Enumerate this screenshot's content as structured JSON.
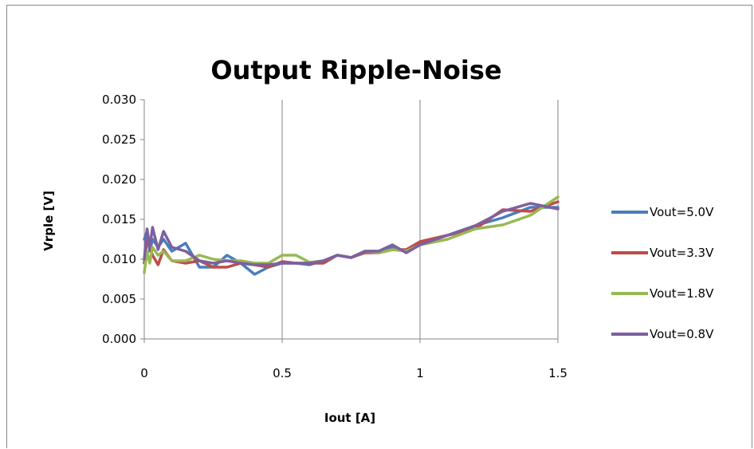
{
  "chart_data": {
    "type": "line",
    "title": "Output Ripple-Noise",
    "xlabel": "Iout [A]",
    "ylabel": "Vrple [V]",
    "xlim": [
      0,
      1.5
    ],
    "ylim": [
      0,
      0.03
    ],
    "xticks": [
      0,
      0.5,
      1,
      1.5
    ],
    "xtick_labels": [
      "0",
      "0.5",
      "1",
      "1.5"
    ],
    "yticks": [
      0,
      0.005,
      0.01,
      0.015,
      0.02,
      0.025,
      0.03
    ],
    "ytick_labels": [
      "0.000",
      "0.005",
      "0.010",
      "0.015",
      "0.020",
      "0.025",
      "0.030"
    ],
    "grid": "vertical",
    "legend_position": "right",
    "series": [
      {
        "name": "Vout=5.0V",
        "color": "#4a7ebb",
        "x": [
          0,
          0.01,
          0.02,
          0.03,
          0.05,
          0.07,
          0.1,
          0.15,
          0.2,
          0.25,
          0.3,
          0.35,
          0.4,
          0.45,
          0.5,
          0.55,
          0.6,
          0.65,
          0.7,
          0.75,
          0.8,
          0.85,
          0.9,
          0.95,
          1.0,
          1.1,
          1.2,
          1.3,
          1.4,
          1.5
        ],
        "y": [
          0.0125,
          0.0135,
          0.011,
          0.0125,
          0.0115,
          0.0125,
          0.011,
          0.012,
          0.009,
          0.009,
          0.0105,
          0.0095,
          0.0081,
          0.009,
          0.0095,
          0.0095,
          0.0093,
          0.0098,
          0.0105,
          0.0102,
          0.011,
          0.011,
          0.0115,
          0.011,
          0.012,
          0.013,
          0.0142,
          0.0152,
          0.0165,
          0.0165
        ]
      },
      {
        "name": "Vout=3.3V",
        "color": "#be4b48",
        "x": [
          0,
          0.01,
          0.02,
          0.03,
          0.05,
          0.07,
          0.1,
          0.15,
          0.2,
          0.25,
          0.3,
          0.35,
          0.4,
          0.45,
          0.5,
          0.55,
          0.6,
          0.65,
          0.7,
          0.75,
          0.8,
          0.85,
          0.9,
          0.95,
          1.0,
          1.1,
          1.2,
          1.3,
          1.4,
          1.5
        ],
        "y": [
          0.0095,
          0.0125,
          0.0115,
          0.0105,
          0.0093,
          0.0112,
          0.0098,
          0.0095,
          0.0098,
          0.009,
          0.009,
          0.0095,
          0.0093,
          0.009,
          0.0097,
          0.0095,
          0.0095,
          0.0095,
          0.0105,
          0.0102,
          0.0108,
          0.0108,
          0.0112,
          0.0112,
          0.0122,
          0.013,
          0.0138,
          0.0162,
          0.016,
          0.0172
        ]
      },
      {
        "name": "Vout=1.8V",
        "color": "#98b954",
        "x": [
          0,
          0.01,
          0.02,
          0.03,
          0.05,
          0.07,
          0.1,
          0.15,
          0.2,
          0.25,
          0.3,
          0.35,
          0.4,
          0.45,
          0.5,
          0.55,
          0.6,
          0.65,
          0.7,
          0.75,
          0.8,
          0.85,
          0.9,
          0.95,
          1.0,
          1.1,
          1.2,
          1.3,
          1.4,
          1.5
        ],
        "y": [
          0.0083,
          0.011,
          0.0095,
          0.0115,
          0.0105,
          0.011,
          0.0098,
          0.0098,
          0.0105,
          0.01,
          0.0098,
          0.0098,
          0.0095,
          0.0095,
          0.0105,
          0.0105,
          0.0096,
          0.0098,
          0.0105,
          0.0102,
          0.011,
          0.0108,
          0.0112,
          0.011,
          0.0118,
          0.0125,
          0.0138,
          0.0143,
          0.0155,
          0.0178
        ]
      },
      {
        "name": "Vout=0.8V",
        "color": "#7d60a0",
        "x": [
          0,
          0.01,
          0.02,
          0.03,
          0.05,
          0.07,
          0.1,
          0.15,
          0.2,
          0.25,
          0.3,
          0.35,
          0.4,
          0.45,
          0.5,
          0.55,
          0.6,
          0.65,
          0.7,
          0.75,
          0.8,
          0.85,
          0.9,
          0.95,
          1.0,
          1.1,
          1.2,
          1.3,
          1.4,
          1.5
        ],
        "y": [
          0.01,
          0.0138,
          0.0115,
          0.014,
          0.0112,
          0.0135,
          0.0115,
          0.011,
          0.0098,
          0.0095,
          0.0098,
          0.0095,
          0.0093,
          0.0093,
          0.0095,
          0.0095,
          0.0095,
          0.0098,
          0.0105,
          0.0102,
          0.011,
          0.011,
          0.0118,
          0.0108,
          0.0118,
          0.013,
          0.0142,
          0.016,
          0.017,
          0.0163
        ]
      }
    ]
  }
}
